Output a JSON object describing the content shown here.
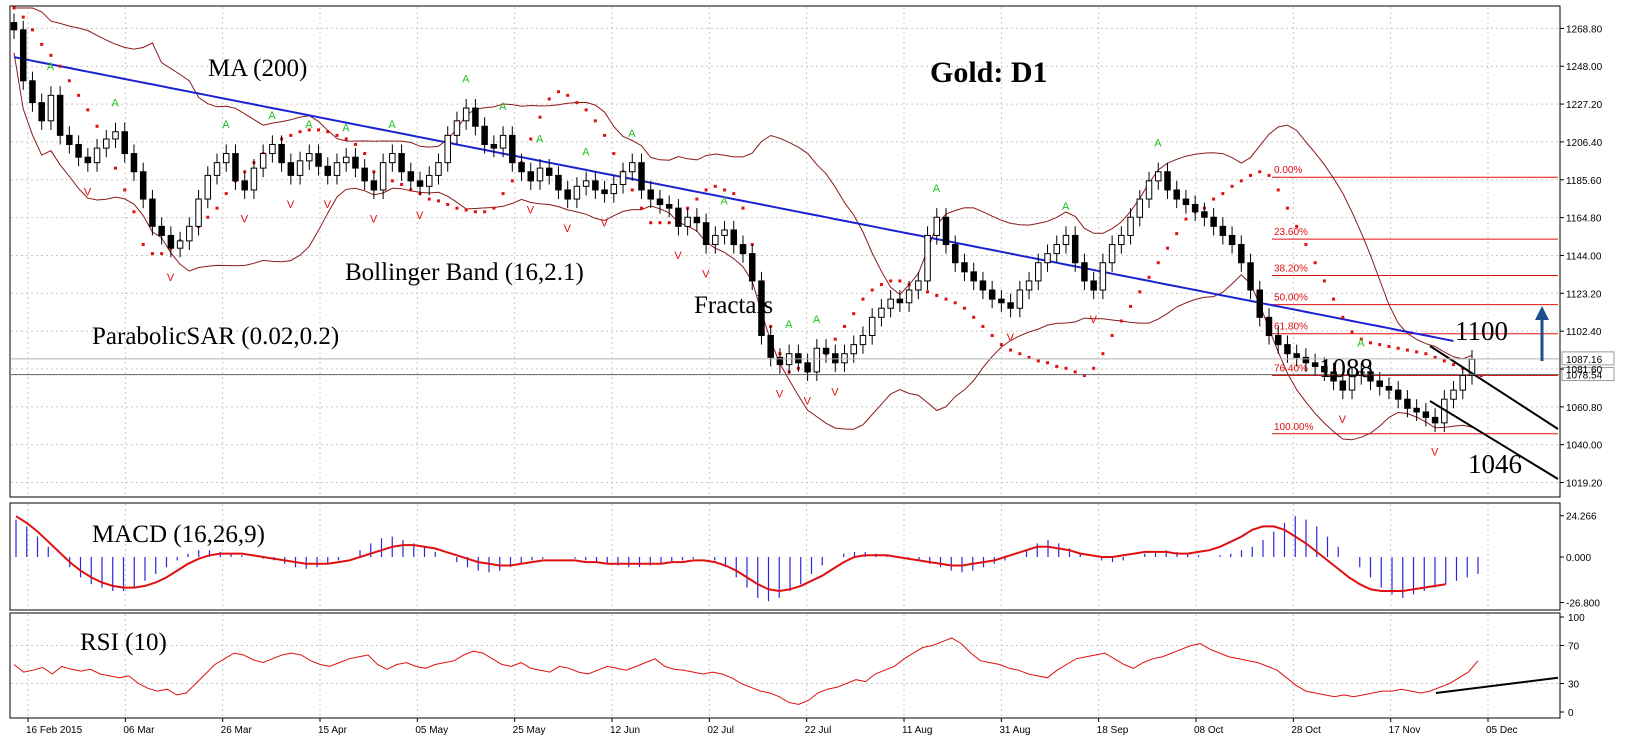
{
  "chart": {
    "title": "Gold: D1",
    "labels": {
      "ma": "MA (200)",
      "bollinger": "Bollinger Band (16,2.1)",
      "fractals": "Fractals",
      "sar": "ParabolicSAR (0.02,0.2)",
      "macd": "MACD (16,26,9)",
      "rsi": "RSI (10)",
      "level_1100": "1100",
      "level_1088": "1088",
      "level_1046": "1046"
    },
    "current_prices": [
      "1087.16",
      "1078.54"
    ]
  },
  "chart_data": [
    {
      "type": "candlestick",
      "title": "Gold: D1",
      "y_ticks": [
        "1268.80",
        "1248.00",
        "1227.20",
        "1206.40",
        "1185.60",
        "1164.80",
        "1144.00",
        "1123.20",
        "1102.40",
        "1081.60",
        "1060.80",
        "1040.00",
        "1019.20"
      ],
      "ylim": [
        1014,
        1280
      ],
      "x_ticks": [
        "16 Feb 2015",
        "06 Mar",
        "26 Mar",
        "15 Apr",
        "05 May",
        "25 May",
        "12 Jun",
        "02 Jul",
        "22 Jul",
        "11 Aug",
        "31 Aug",
        "18 Sep",
        "08 Oct",
        "28 Oct",
        "17 Nov",
        "05 Dec"
      ],
      "close": [
        1268,
        1240,
        1228,
        1218,
        1232,
        1210,
        1205,
        1198,
        1195,
        1203,
        1208,
        1212,
        1200,
        1190,
        1175,
        1160,
        1155,
        1148,
        1152,
        1160,
        1175,
        1188,
        1195,
        1200,
        1185,
        1180,
        1192,
        1200,
        1205,
        1195,
        1188,
        1196,
        1200,
        1193,
        1188,
        1195,
        1198,
        1192,
        1185,
        1180,
        1195,
        1200,
        1190,
        1185,
        1182,
        1188,
        1195,
        1210,
        1218,
        1225,
        1215,
        1205,
        1203,
        1210,
        1195,
        1190,
        1185,
        1192,
        1188,
        1180,
        1175,
        1182,
        1185,
        1180,
        1178,
        1183,
        1190,
        1195,
        1180,
        1175,
        1172,
        1170,
        1160,
        1165,
        1162,
        1150,
        1155,
        1158,
        1150,
        1145,
        1130,
        1100,
        1088,
        1084,
        1090,
        1085,
        1080,
        1093,
        1090,
        1085,
        1090,
        1095,
        1100,
        1110,
        1115,
        1120,
        1118,
        1125,
        1130,
        1155,
        1165,
        1150,
        1140,
        1135,
        1130,
        1125,
        1120,
        1118,
        1115,
        1125,
        1130,
        1140,
        1145,
        1150,
        1155,
        1140,
        1130,
        1125,
        1140,
        1150,
        1155,
        1165,
        1175,
        1185,
        1190,
        1180,
        1175,
        1172,
        1168,
        1165,
        1160,
        1155,
        1150,
        1140,
        1125,
        1110,
        1100,
        1095,
        1090,
        1088,
        1085,
        1083,
        1080,
        1075,
        1070,
        1078,
        1080,
        1075,
        1072,
        1070,
        1065,
        1060,
        1058,
        1055,
        1052,
        1065,
        1070,
        1078,
        1087
      ],
      "sar": [
        1280,
        1275,
        1268,
        1260,
        1254,
        1248,
        1240,
        1232,
        1224,
        1215,
        1204,
        1192,
        1180,
        1168,
        1150,
        1145,
        1145,
        1148,
        1152,
        1156,
        1160,
        1165,
        1170,
        1178,
        1185,
        1190,
        1195,
        1200,
        1204,
        1208,
        1210,
        1212,
        1213,
        1213,
        1212,
        1210,
        1208,
        1205,
        1200,
        1190,
        1188,
        1185,
        1183,
        1180,
        1178,
        1175,
        1174,
        1172,
        1170,
        1169,
        1168,
        1168,
        1170,
        1178,
        1185,
        1195,
        1208,
        1220,
        1230,
        1234,
        1232,
        1228,
        1224,
        1218,
        1210,
        1200,
        1190,
        1180,
        1170,
        1162,
        1162,
        1162,
        1165,
        1170,
        1175,
        1180,
        1182,
        1180,
        1178,
        1170,
        1150,
        1125,
        1105,
        1090,
        1080,
        1082,
        1084,
        1086,
        1090,
        1098,
        1105,
        1112,
        1120,
        1125,
        1128,
        1130,
        1130,
        1128,
        1126,
        1124,
        1122,
        1120,
        1118,
        1115,
        1110,
        1105,
        1100,
        1095,
        1092,
        1090,
        1088,
        1086,
        1085,
        1083,
        1082,
        1080,
        1078,
        1082,
        1090,
        1100,
        1108,
        1116,
        1124,
        1132,
        1140,
        1148,
        1156,
        1164,
        1168,
        1170,
        1175,
        1178,
        1182,
        1185,
        1188,
        1190,
        1188,
        1180,
        1170,
        1160,
        1150,
        1140,
        1130,
        1120,
        1110,
        1102,
        1098,
        1096,
        1095,
        1094,
        1093,
        1092,
        1091,
        1090,
        1088,
        1086,
        1084,
        1082,
        1080,
        1078
      ],
      "ma200": [
        1253,
        1252,
        1251,
        1250,
        1249,
        1248,
        1247,
        1246,
        1245,
        1244,
        1243,
        1242,
        1241,
        1240,
        1239,
        1238,
        1237,
        1236,
        1235,
        1234,
        1233,
        1232,
        1231,
        1230,
        1229,
        1228,
        1227,
        1226,
        1225,
        1224,
        1223,
        1222,
        1221,
        1220,
        1219,
        1218,
        1217,
        1216,
        1215,
        1214,
        1213,
        1212,
        1211,
        1210,
        1209,
        1208,
        1207,
        1206,
        1205,
        1204,
        1203,
        1202,
        1201,
        1200,
        1199,
        1198,
        1197,
        1196,
        1195,
        1194,
        1193,
        1192,
        1191,
        1190,
        1189,
        1188,
        1187,
        1186,
        1185,
        1184,
        1183,
        1182,
        1181,
        1180,
        1179,
        1178,
        1177,
        1176,
        1175,
        1174,
        1173,
        1172,
        1171,
        1170,
        1169,
        1168,
        1167,
        1166,
        1165,
        1164,
        1163,
        1162,
        1161,
        1160,
        1159,
        1158,
        1157,
        1156,
        1155,
        1154,
        1153,
        1152,
        1151,
        1150,
        1149,
        1148,
        1147,
        1146,
        1145,
        1144,
        1143,
        1142,
        1141,
        1140,
        1139,
        1138,
        1137,
        1136,
        1135,
        1134,
        1133,
        1132,
        1131,
        1130,
        1129,
        1128,
        1127,
        1126,
        1125,
        1124,
        1123,
        1122,
        1121,
        1120,
        1119,
        1118,
        1117,
        1116,
        1115,
        1114,
        1113,
        1112,
        1111,
        1110,
        1109,
        1108,
        1107,
        1106,
        1105,
        1104,
        1103,
        1102,
        1101,
        1100,
        1099,
        1098,
        1097
      ],
      "fib_levels": [
        {
          "label": "0.00%",
          "value": 1187
        },
        {
          "label": "23.60%",
          "value": 1153
        },
        {
          "label": "38.20%",
          "value": 1133
        },
        {
          "label": "50.00%",
          "value": 1117
        },
        {
          "label": "61.80%",
          "value": 1101
        },
        {
          "label": "76.40%",
          "value": 1078
        },
        {
          "label": "100.00%",
          "value": 1046
        }
      ],
      "horizontal_levels": [
        1087.16,
        1078.54
      ]
    },
    {
      "type": "bar",
      "title": "MACD (16,26,9)",
      "y_ticks": [
        "24.266",
        "0.000",
        "-26.800"
      ],
      "ylim": [
        -30,
        30
      ],
      "histogram": [
        22,
        18,
        12,
        6,
        0,
        -6,
        -12,
        -16,
        -18,
        -20,
        -20,
        -18,
        -14,
        -10,
        -6,
        -2,
        2,
        4,
        4,
        3,
        2,
        1,
        0,
        -1,
        -2,
        -4,
        -6,
        -7,
        -6,
        -4,
        -2,
        0,
        4,
        8,
        11,
        12,
        10,
        8,
        6,
        3,
        0,
        -3,
        -6,
        -8,
        -9,
        -8,
        -6,
        -4,
        -2,
        -1,
        0,
        0,
        -1,
        -2,
        -3,
        -4,
        -5,
        -6,
        -6,
        -5,
        -4,
        -3,
        -2,
        -1,
        0,
        -2,
        -6,
        -12,
        -18,
        -24,
        -26,
        -24,
        -20,
        -16,
        -10,
        -5,
        0,
        2,
        3,
        3,
        2,
        1,
        0,
        -1,
        -2,
        -4,
        -6,
        -8,
        -9,
        -8,
        -6,
        -4,
        -2,
        0,
        4,
        8,
        10,
        8,
        5,
        2,
        0,
        -2,
        -3,
        -2,
        0,
        2,
        3,
        4,
        3,
        2,
        1,
        0,
        1,
        2,
        4,
        6,
        10,
        15,
        20,
        24,
        22,
        18,
        12,
        6,
        0,
        -6,
        -12,
        -18,
        -22,
        -24,
        -22,
        -20,
        -18,
        -16,
        -14,
        -12,
        -10
      ],
      "signal": [
        24,
        20,
        15,
        9,
        3,
        -3,
        -8,
        -12,
        -15,
        -17,
        -18,
        -18,
        -17,
        -15,
        -12,
        -8,
        -4,
        -1,
        1,
        2,
        2,
        2,
        1,
        0,
        -1,
        -2,
        -3,
        -4,
        -4,
        -4,
        -3,
        -2,
        0,
        2,
        4,
        6,
        7,
        7,
        6,
        5,
        3,
        1,
        -1,
        -3,
        -4,
        -5,
        -5,
        -4,
        -3,
        -2,
        -2,
        -2,
        -2,
        -3,
        -3,
        -4,
        -4,
        -4,
        -4,
        -4,
        -4,
        -3,
        -3,
        -2,
        -2,
        -3,
        -5,
        -8,
        -12,
        -16,
        -19,
        -20,
        -19,
        -17,
        -14,
        -11,
        -7,
        -3,
        0,
        1,
        1,
        1,
        0,
        -1,
        -2,
        -3,
        -4,
        -5,
        -5,
        -4,
        -3,
        -2,
        0,
        2,
        4,
        6,
        6,
        5,
        4,
        2,
        1,
        0,
        0,
        1,
        2,
        3,
        3,
        3,
        2,
        2,
        3,
        4,
        6,
        9,
        12,
        16,
        18,
        18,
        16,
        12,
        8,
        3,
        -2,
        -7,
        -12,
        -16,
        -19,
        -20,
        -20,
        -20,
        -19,
        -18,
        -17,
        -16
      ]
    },
    {
      "type": "line",
      "title": "RSI (10)",
      "y_ticks": [
        "100",
        "70",
        "30",
        "0"
      ],
      "ylim": [
        0,
        100
      ],
      "values": [
        50,
        42,
        44,
        47,
        40,
        48,
        45,
        43,
        45,
        40,
        38,
        36,
        38,
        30,
        25,
        22,
        24,
        18,
        20,
        30,
        40,
        50,
        56,
        62,
        60,
        55,
        52,
        56,
        60,
        62,
        60,
        54,
        50,
        48,
        52,
        56,
        58,
        60,
        50,
        45,
        50,
        52,
        48,
        46,
        50,
        52,
        54,
        60,
        64,
        62,
        56,
        50,
        48,
        52,
        46,
        44,
        42,
        48,
        46,
        42,
        40,
        44,
        48,
        46,
        44,
        48,
        52,
        56,
        48,
        45,
        44,
        42,
        40,
        42,
        40,
        36,
        30,
        26,
        22,
        20,
        16,
        10,
        8,
        12,
        20,
        24,
        26,
        30,
        34,
        32,
        40,
        44,
        48,
        56,
        62,
        68,
        70,
        74,
        78,
        72,
        62,
        54,
        52,
        50,
        46,
        44,
        40,
        38,
        36,
        44,
        50,
        56,
        58,
        60,
        62,
        56,
        50,
        46,
        52,
        56,
        58,
        62,
        66,
        70,
        72,
        66,
        62,
        58,
        56,
        54,
        52,
        48,
        44,
        36,
        28,
        22,
        20,
        18,
        16,
        18,
        16,
        18,
        20,
        22,
        22,
        24,
        22,
        20,
        22,
        26,
        30,
        36,
        42,
        54
      ]
    }
  ]
}
